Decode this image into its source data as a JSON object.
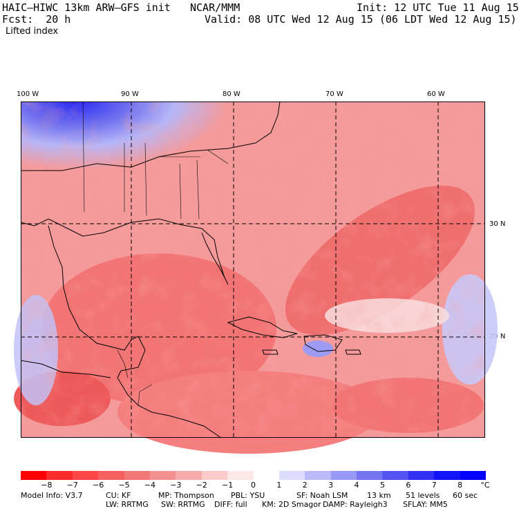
{
  "header": {
    "model": "HAIC–HIWC 13km ARW–GFS init",
    "org": "NCAR/MMM",
    "init": "Init: 12 UTC Tue 11 Aug 15",
    "fcst": "Fcst:  20 h",
    "valid": "Valid: 08 UTC Wed 12 Aug 15 (06 LDT Wed 12 Aug 15)",
    "field": "Lifted index"
  },
  "map": {
    "lon_labels": [
      "100 W",
      "90 W",
      "80 W",
      "70 W",
      "60 W"
    ],
    "lat_labels": [
      "30 N",
      "20 N"
    ]
  },
  "colorbar": {
    "ticks": [
      "−8",
      "−7",
      "−6",
      "−5",
      "−4",
      "−3",
      "−2",
      "−1",
      "0",
      "1",
      "2",
      "3",
      "4",
      "5",
      "6",
      "7",
      "8"
    ],
    "unit": "°C",
    "colors": [
      "#ff0000",
      "#ff2b2b",
      "#ff4747",
      "#f86060",
      "#f27878",
      "#f39090",
      "#f7abab",
      "#fbcaca",
      "#fde8e8",
      "#ffffff",
      "#dcdcff",
      "#b9b9fb",
      "#9898f7",
      "#7575f2",
      "#5454f3",
      "#3131f6",
      "#1414fa",
      "#0000ff"
    ]
  },
  "model_info": {
    "line1": [
      "Model Info: V3.7",
      "CU: KF",
      "MP: Thompson",
      "PBL: YSU",
      "SF: Noah LSM",
      "13 km",
      "51 levels",
      "60 sec"
    ],
    "line2": [
      "LW: RRTMG",
      "SW: RRTMG",
      "DIFF: full",
      "KM: 2D Smagor",
      "DAMP: Rayleigh3",
      "SFLAY: MM5"
    ]
  }
}
